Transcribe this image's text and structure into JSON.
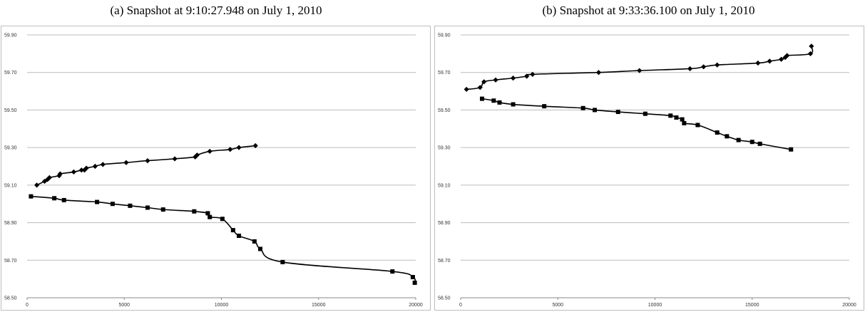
{
  "captions": {
    "a": "(a) Snapshot at 9:10:27.948 on July 1, 2010",
    "b": "(b) Snapshot at 9:33:36.100 on July 1, 2010"
  },
  "chart_data": [
    {
      "type": "line",
      "title": "(a) Snapshot at 9:10:27.948 on July 1, 2010",
      "xlim": [
        0,
        20000
      ],
      "ylim": [
        58.5,
        59.9
      ],
      "x_ticks": [
        "0",
        "5000",
        "10000",
        "15000",
        "20000"
      ],
      "y_ticks": [
        "59.90",
        "59.70",
        "59.50",
        "59.30",
        "59.10",
        "58.90",
        "58.70",
        "58.50"
      ],
      "grid": true,
      "series": [
        {
          "marker": "diamond",
          "x": [
            500,
            900,
            1050,
            1150,
            1650,
            1700,
            2400,
            2800,
            2950,
            3050,
            3500,
            3900,
            5100,
            6200,
            7600,
            8650,
            8750,
            9400,
            10450,
            10900,
            11750
          ],
          "y": [
            59.1,
            59.12,
            59.13,
            59.14,
            59.15,
            59.16,
            59.17,
            59.18,
            59.18,
            59.19,
            59.2,
            59.21,
            59.22,
            59.23,
            59.24,
            59.25,
            59.26,
            59.28,
            59.29,
            59.3,
            59.31
          ]
        },
        {
          "marker": "square",
          "x": [
            200,
            1400,
            1900,
            3600,
            4400,
            5300,
            6200,
            7000,
            8600,
            9300,
            9400,
            10050,
            10600,
            10900,
            11700,
            12000,
            13150,
            18800,
            19850,
            19950
          ],
          "y": [
            59.04,
            59.03,
            59.02,
            59.01,
            59.0,
            58.99,
            58.98,
            58.97,
            58.96,
            58.95,
            58.93,
            58.92,
            58.86,
            58.83,
            58.8,
            58.76,
            58.69,
            58.64,
            58.61,
            58.58
          ]
        }
      ]
    },
    {
      "type": "line",
      "title": "(b) Snapshot at 9:33:36.100 on July 1, 2010",
      "xlim": [
        0,
        20000
      ],
      "ylim": [
        58.5,
        59.9
      ],
      "x_ticks": [
        "0",
        "5000",
        "10000",
        "15000",
        "20000"
      ],
      "y_ticks": [
        "59.90",
        "59.70",
        "59.50",
        "59.30",
        "59.10",
        "58.90",
        "58.70",
        "58.50"
      ],
      "grid": true,
      "series": [
        {
          "marker": "diamond",
          "x": [
            300,
            1000,
            1200,
            1800,
            2700,
            3400,
            3700,
            7100,
            9200,
            11800,
            12500,
            13200,
            15300,
            15900,
            16500,
            16700,
            16800,
            18000,
            18050
          ],
          "y": [
            59.61,
            59.62,
            59.65,
            59.66,
            59.67,
            59.68,
            59.69,
            59.7,
            59.71,
            59.72,
            59.73,
            59.74,
            59.75,
            59.76,
            59.77,
            59.78,
            59.79,
            59.8,
            59.84
          ]
        },
        {
          "marker": "square",
          "x": [
            1100,
            1700,
            2000,
            2700,
            4300,
            6300,
            6900,
            8100,
            9500,
            10800,
            11100,
            11400,
            11500,
            12200,
            13200,
            13700,
            14300,
            15000,
            15400,
            17000
          ],
          "y": [
            59.56,
            59.55,
            59.54,
            59.53,
            59.52,
            59.51,
            59.5,
            59.49,
            59.48,
            59.47,
            59.46,
            59.45,
            59.43,
            59.42,
            59.38,
            59.36,
            59.34,
            59.33,
            59.32,
            59.29
          ]
        }
      ]
    }
  ]
}
